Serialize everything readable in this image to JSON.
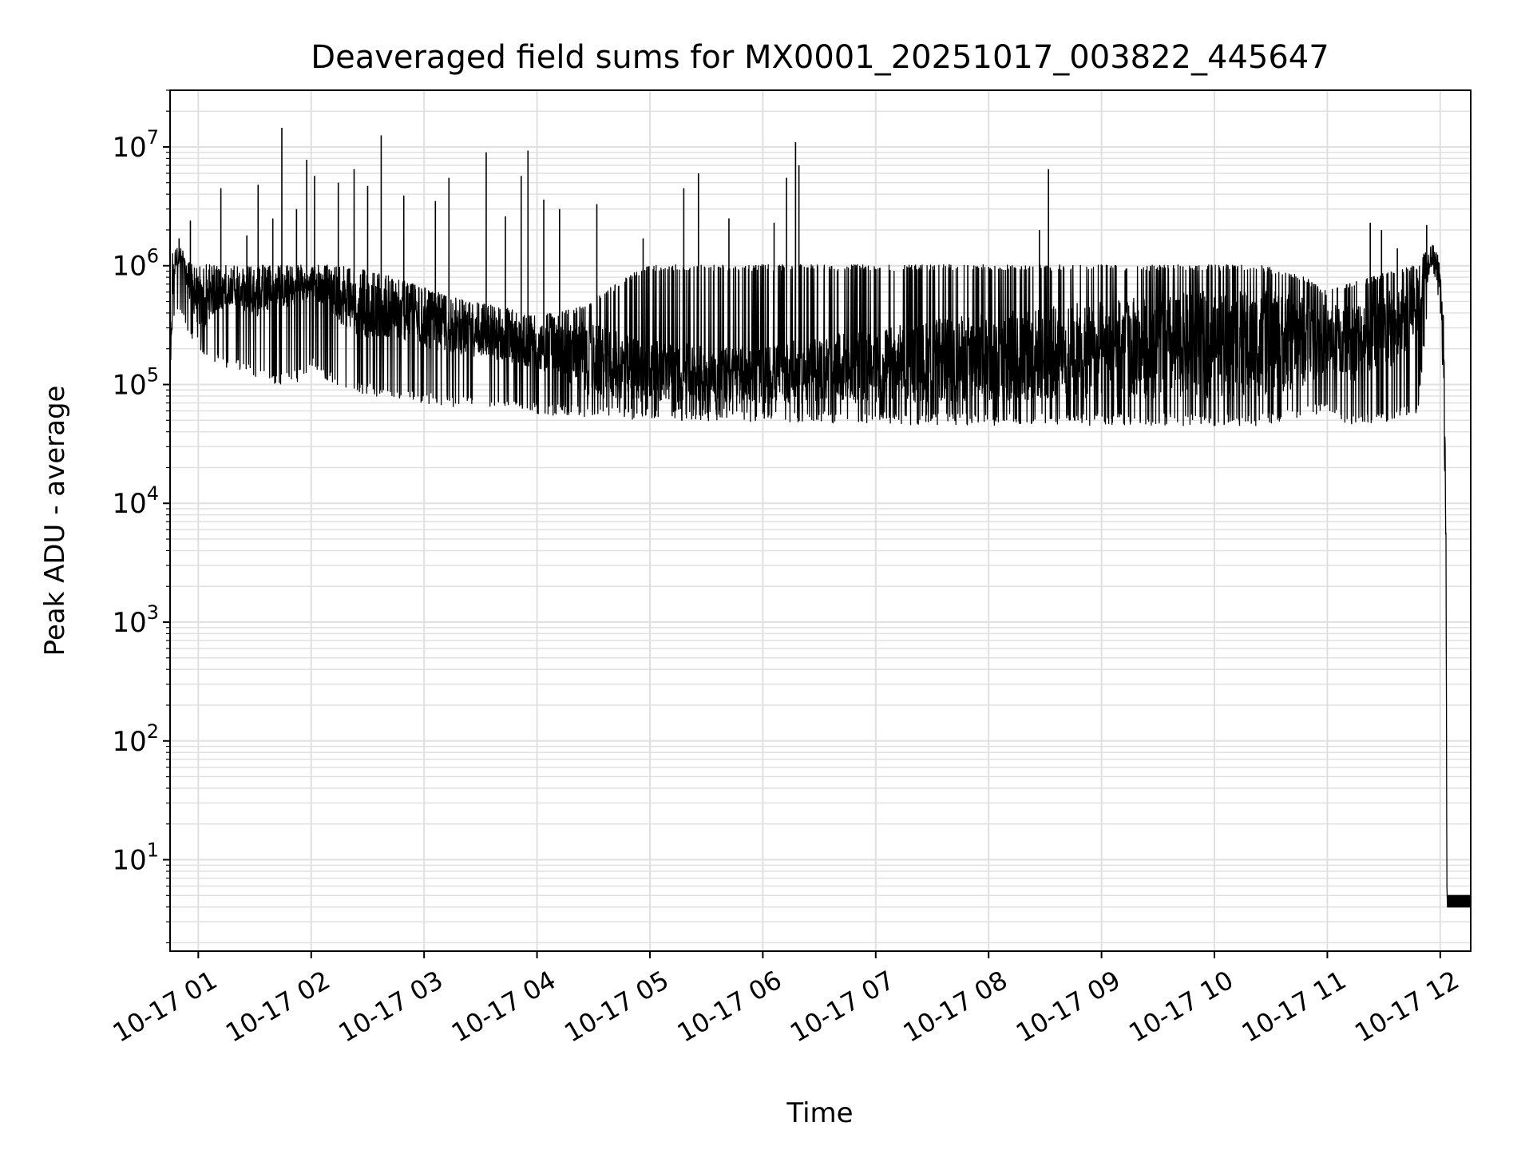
{
  "chart_data": {
    "type": "line",
    "title": "Deaveraged field sums for MX0001_20251017_003822_445647",
    "xlabel": "Time",
    "ylabel": "Peak ADU - average",
    "yscale": "log",
    "grid": true,
    "grid_which": "both",
    "line_color": "#000000",
    "grid_color": "#e0e0e0",
    "xlim_hours": [
      0.75,
      12.27
    ],
    "ylim": [
      1.7,
      30000000
    ],
    "x_ticks": [
      {
        "hour": 1,
        "label": "10-17 01"
      },
      {
        "hour": 2,
        "label": "10-17 02"
      },
      {
        "hour": 3,
        "label": "10-17 03"
      },
      {
        "hour": 4,
        "label": "10-17 04"
      },
      {
        "hour": 5,
        "label": "10-17 05"
      },
      {
        "hour": 6,
        "label": "10-17 06"
      },
      {
        "hour": 7,
        "label": "10-17 07"
      },
      {
        "hour": 8,
        "label": "10-17 08"
      },
      {
        "hour": 9,
        "label": "10-17 09"
      },
      {
        "hour": 10,
        "label": "10-17 10"
      },
      {
        "hour": 11,
        "label": "10-17 11"
      },
      {
        "hour": 12,
        "label": "10-17 12"
      }
    ],
    "y_ticks": [
      {
        "value": 10,
        "base": "10",
        "exp": "1"
      },
      {
        "value": 100,
        "base": "10",
        "exp": "2"
      },
      {
        "value": 1000,
        "base": "10",
        "exp": "3"
      },
      {
        "value": 10000,
        "base": "10",
        "exp": "4"
      },
      {
        "value": 100000,
        "base": "10",
        "exp": "5"
      },
      {
        "value": 1000000,
        "base": "10",
        "exp": "6"
      },
      {
        "value": 10000000,
        "base": "10",
        "exp": "7"
      }
    ],
    "series": [
      {
        "name": "Peak ADU - average",
        "x_hours": [
          0.75,
          0.77,
          0.8,
          0.85,
          0.9,
          0.95,
          1.0,
          1.05,
          1.1,
          1.2,
          1.3,
          1.4,
          1.5,
          1.6,
          1.7,
          1.8,
          1.9,
          2.0,
          2.1,
          2.2,
          2.3,
          2.4,
          2.5,
          2.6,
          2.7,
          2.8,
          2.9,
          3.0,
          3.1,
          3.2,
          3.3,
          3.4,
          3.5,
          3.6,
          3.7,
          3.8,
          3.9,
          4.0,
          4.2,
          4.4,
          4.6,
          4.8,
          5.0,
          5.3,
          5.6,
          6.0,
          6.4,
          6.8,
          7.2,
          7.6,
          8.0,
          8.4,
          8.8,
          9.2,
          9.6,
          10.0,
          10.4,
          10.8,
          11.0,
          11.2,
          11.4,
          11.6,
          11.8,
          11.92,
          11.96,
          12.0,
          12.03,
          12.05,
          12.06,
          12.27
        ],
        "median": [
          120000,
          600000,
          1200000,
          1100000,
          800000,
          600000,
          500000,
          450000,
          550000,
          600000,
          650000,
          600000,
          550000,
          600000,
          650000,
          600000,
          650000,
          700000,
          650000,
          550000,
          500000,
          450000,
          420000,
          420000,
          400000,
          380000,
          360000,
          330000,
          310000,
          290000,
          280000,
          270000,
          260000,
          250000,
          240000,
          230000,
          220000,
          210000,
          190000,
          170000,
          150000,
          140000,
          130000,
          125000,
          120000,
          120000,
          130000,
          140000,
          150000,
          160000,
          170000,
          180000,
          190000,
          200000,
          210000,
          220000,
          220000,
          230000,
          250000,
          230000,
          260000,
          300000,
          450000,
          1300000,
          1100000,
          700000,
          200000,
          6000,
          4,
          4
        ],
        "upper": [
          300000,
          1300000,
          1600000,
          1400000,
          1100000,
          1000000,
          1000000,
          1000000,
          1000000,
          1000000,
          1000000,
          1000000,
          1000000,
          1000000,
          1000000,
          1000000,
          1000000,
          1000000,
          1000000,
          1000000,
          1000000,
          950000,
          900000,
          850000,
          800000,
          750000,
          700000,
          650000,
          600000,
          550000,
          520000,
          500000,
          480000,
          460000,
          440000,
          420000,
          400000,
          380000,
          400000,
          450000,
          600000,
          800000,
          1000000,
          1000000,
          1000000,
          1000000,
          1000000,
          1000000,
          1000000,
          1000000,
          1000000,
          1000000,
          1000000,
          1000000,
          1000000,
          1000000,
          1000000,
          800000,
          600000,
          700000,
          800000,
          900000,
          1000000,
          1700000,
          1500000,
          1000000,
          400000,
          10000,
          5,
          5
        ],
        "lower": [
          100000,
          300000,
          500000,
          400000,
          300000,
          250000,
          220000,
          200000,
          180000,
          160000,
          150000,
          140000,
          130000,
          120000,
          110000,
          110000,
          120000,
          150000,
          130000,
          110000,
          100000,
          95000,
          90000,
          85000,
          82000,
          80000,
          78000,
          76000,
          74000,
          72000,
          70000,
          68000,
          66000,
          65000,
          64000,
          63000,
          62000,
          61000,
          60000,
          58000,
          57000,
          56000,
          55000,
          55000,
          55000,
          54000,
          53000,
          52000,
          51000,
          50000,
          50000,
          50000,
          50000,
          50000,
          50000,
          50000,
          50000,
          60000,
          60000,
          50000,
          50000,
          55000,
          60000,
          1000000,
          800000,
          400000,
          100000,
          3000,
          4,
          4
        ],
        "spikes": [
          {
            "hour": 0.83,
            "value": 1700000
          },
          {
            "hour": 0.93,
            "value": 2400000
          },
          {
            "hour": 1.2,
            "value": 4500000
          },
          {
            "hour": 1.43,
            "value": 1800000
          },
          {
            "hour": 1.53,
            "value": 4800000
          },
          {
            "hour": 1.66,
            "value": 2500000
          },
          {
            "hour": 1.74,
            "value": 14500000
          },
          {
            "hour": 1.87,
            "value": 3000000
          },
          {
            "hour": 1.96,
            "value": 7800000
          },
          {
            "hour": 2.03,
            "value": 5700000
          },
          {
            "hour": 2.24,
            "value": 5000000
          },
          {
            "hour": 2.38,
            "value": 6500000
          },
          {
            "hour": 2.5,
            "value": 4700000
          },
          {
            "hour": 2.62,
            "value": 12500000
          },
          {
            "hour": 2.82,
            "value": 3900000
          },
          {
            "hour": 3.1,
            "value": 3500000
          },
          {
            "hour": 3.22,
            "value": 5500000
          },
          {
            "hour": 3.55,
            "value": 9000000
          },
          {
            "hour": 3.72,
            "value": 2600000
          },
          {
            "hour": 3.86,
            "value": 5700000
          },
          {
            "hour": 3.92,
            "value": 9300000
          },
          {
            "hour": 4.06,
            "value": 3600000
          },
          {
            "hour": 4.2,
            "value": 3000000
          },
          {
            "hour": 4.53,
            "value": 3300000
          },
          {
            "hour": 4.94,
            "value": 1700000
          },
          {
            "hour": 5.3,
            "value": 4500000
          },
          {
            "hour": 5.43,
            "value": 6000000
          },
          {
            "hour": 5.7,
            "value": 2500000
          },
          {
            "hour": 6.1,
            "value": 2300000
          },
          {
            "hour": 6.21,
            "value": 5500000
          },
          {
            "hour": 6.29,
            "value": 11000000
          },
          {
            "hour": 6.32,
            "value": 7000000
          },
          {
            "hour": 8.45,
            "value": 2000000
          },
          {
            "hour": 8.53,
            "value": 6500000
          },
          {
            "hour": 11.38,
            "value": 2300000
          },
          {
            "hour": 11.48,
            "value": 2000000
          },
          {
            "hour": 11.62,
            "value": 1400000
          },
          {
            "hour": 11.88,
            "value": 2200000
          }
        ]
      }
    ]
  }
}
